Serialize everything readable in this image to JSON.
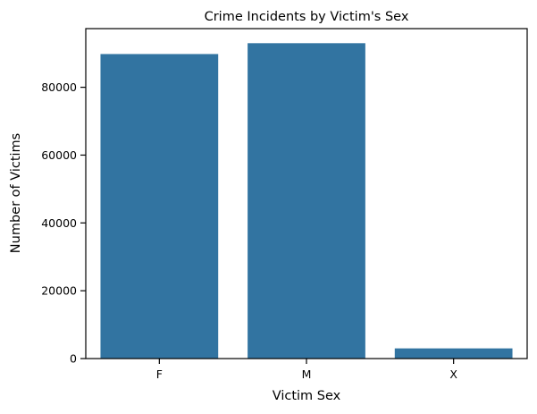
{
  "chart_data": {
    "type": "bar",
    "title": "Crime Incidents by Victim's Sex",
    "xlabel": "Victim Sex",
    "ylabel": "Number of Victims",
    "categories": [
      "F",
      "M",
      "X"
    ],
    "values": [
      89800,
      93000,
      3000
    ],
    "ylim": [
      0,
      97300
    ],
    "yticks": [
      0,
      20000,
      40000,
      60000,
      80000
    ],
    "ytick_labels": [
      "0",
      "20000",
      "40000",
      "60000",
      "80000"
    ],
    "bar_color": "#3274a1",
    "grid": false,
    "legend": "none"
  }
}
